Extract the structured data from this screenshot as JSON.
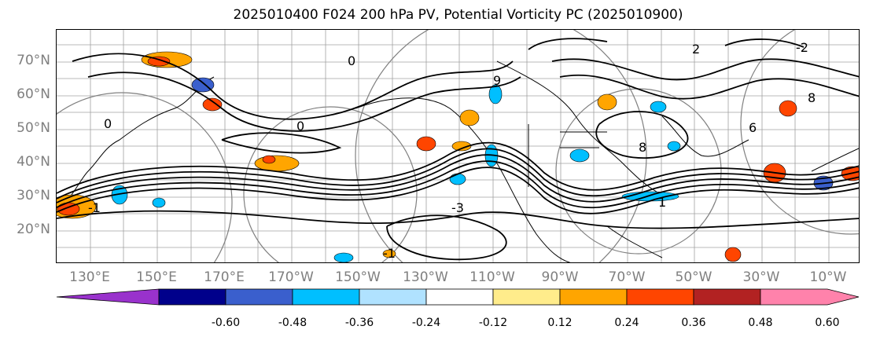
{
  "title": "2025010400 F024 200 hPa PV, Potential Vorticity PC (2025010900)",
  "lat_labels": [
    "70°N",
    "60°N",
    "50°N",
    "40°N",
    "30°N",
    "20°N"
  ],
  "lon_labels": [
    "130°E",
    "150°E",
    "170°E",
    "170°W",
    "150°W",
    "130°W",
    "110°W",
    "90°W",
    "70°W",
    "50°W",
    "30°W",
    "10°W"
  ],
  "contour_labels": [
    "-1",
    "0",
    "0",
    "0",
    "2",
    "9",
    "8",
    "8",
    "1",
    "-1",
    "-3",
    "6",
    "-2"
  ],
  "colorbar": {
    "colors": [
      "#9932cc",
      "#00008b",
      "#3a5fcd",
      "#00bfff",
      "#b0e2ff",
      "#ffffff",
      "#ffec8b",
      "#ffa500",
      "#ff4500",
      "#b22222",
      "#ff82ab"
    ],
    "tick_labels": [
      "-0.60",
      "-0.48",
      "-0.36",
      "-0.24",
      "-0.12",
      "0.12",
      "0.24",
      "0.36",
      "0.48",
      "0.60"
    ]
  },
  "colors": {
    "grid": "#a0a0a0",
    "contour": "#000000",
    "axis_label": "#7f7f7f",
    "circle": "#808080"
  }
}
